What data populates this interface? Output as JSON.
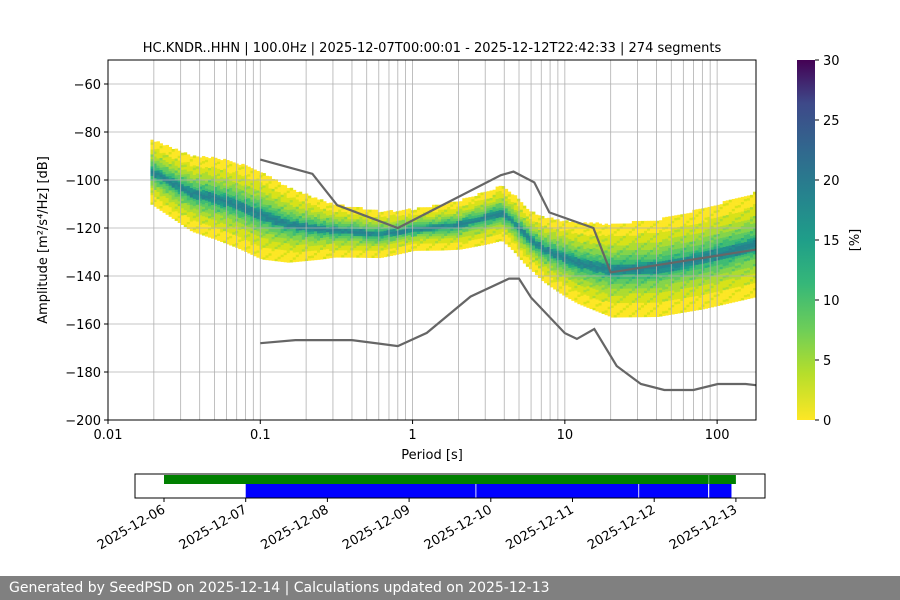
{
  "chart_data": [
    {
      "type": "heatmap",
      "title": "HC.KNDR..HHN | 100.0Hz | 2025-12-07T00:00:01 - 2025-12-12T22:42:33 | 274 segments",
      "xlabel": "Period [s]",
      "ylabel": "Amplitude [m²/s⁴/Hz] [dB]",
      "xscale": "log",
      "xlim": [
        0.01,
        180
      ],
      "ylim": [
        -200,
        -50
      ],
      "xticks": [
        "0.01",
        "0.1",
        "1",
        "10",
        "100"
      ],
      "yticks": [
        "−60",
        "−80",
        "−100",
        "−120",
        "−140",
        "−160",
        "−180",
        "−200"
      ],
      "grid": true,
      "colorbar": {
        "label": "[%]",
        "range": [
          0,
          30
        ],
        "ticks": [
          "0",
          "5",
          "10",
          "15",
          "20",
          "25",
          "30"
        ],
        "colormap": "viridis"
      },
      "density_mode": [
        [
          0.019,
          -97
        ],
        [
          0.025,
          -101
        ],
        [
          0.035,
          -106
        ],
        [
          0.05,
          -108
        ],
        [
          0.07,
          -111
        ],
        [
          0.1,
          -115
        ],
        [
          0.15,
          -119
        ],
        [
          0.25,
          -121
        ],
        [
          0.4,
          -122
        ],
        [
          0.6,
          -123
        ],
        [
          0.8,
          -122
        ],
        [
          1.0,
          -121
        ],
        [
          1.5,
          -120
        ],
        [
          2.0,
          -119
        ],
        [
          3.0,
          -116
        ],
        [
          3.8,
          -114
        ],
        [
          4.5,
          -118
        ],
        [
          5.5,
          -124
        ],
        [
          7.0,
          -129
        ],
        [
          9.0,
          -132
        ],
        [
          12,
          -135
        ],
        [
          20,
          -138
        ],
        [
          40,
          -137
        ],
        [
          80,
          -133
        ],
        [
          180,
          -127
        ]
      ],
      "density_band_width_db": [
        [
          0.019,
          22
        ],
        [
          0.05,
          28
        ],
        [
          0.1,
          30
        ],
        [
          0.3,
          18
        ],
        [
          1.0,
          14
        ],
        [
          3.0,
          18
        ],
        [
          6.0,
          20
        ],
        [
          10,
          26
        ],
        [
          20,
          32
        ],
        [
          60,
          34
        ],
        [
          180,
          36
        ]
      ],
      "nhnm": [
        [
          0.1,
          -91.5
        ],
        [
          0.22,
          -97.4
        ],
        [
          0.32,
          -110.5
        ],
        [
          0.8,
          -120
        ],
        [
          3.8,
          -98
        ],
        [
          4.6,
          -96.5
        ],
        [
          6.3,
          -101
        ],
        [
          7.9,
          -113.5
        ],
        [
          15.4,
          -120
        ],
        [
          20,
          -138.5
        ],
        [
          180,
          -129
        ]
      ],
      "nlnm": [
        [
          0.1,
          -168
        ],
        [
          0.17,
          -166.7
        ],
        [
          0.4,
          -166.7
        ],
        [
          0.8,
          -169.2
        ],
        [
          1.24,
          -163.7
        ],
        [
          2.4,
          -148.6
        ],
        [
          4.3,
          -141.1
        ],
        [
          5.0,
          -141.1
        ],
        [
          6.0,
          -149
        ],
        [
          10,
          -163.8
        ],
        [
          12,
          -166.2
        ],
        [
          15.6,
          -162.1
        ],
        [
          21.9,
          -177.5
        ],
        [
          31.6,
          -185
        ],
        [
          45,
          -187.5
        ],
        [
          70,
          -187.5
        ],
        [
          101,
          -185
        ],
        [
          154,
          -185
        ],
        [
          180,
          -185.5
        ]
      ],
      "line_color": "#666666"
    },
    {
      "type": "timeline",
      "xticks": [
        "2025-12-06",
        "2025-12-07",
        "2025-12-08",
        "2025-12-09",
        "2025-12-10",
        "2025-12-11",
        "2025-12-12",
        "2025-12-13"
      ],
      "available": [
        {
          "start": "2025-12-06T00:00",
          "end": "2025-12-12T16:00"
        },
        {
          "start": "2025-12-12T16:08",
          "end": "2025-12-13T00:00"
        }
      ],
      "processed": [
        {
          "start": "2025-12-07T00:00",
          "end": "2025-12-09T19:30"
        },
        {
          "start": "2025-12-09T19:45",
          "end": "2025-12-11T19:20"
        },
        {
          "start": "2025-12-11T19:35",
          "end": "2025-12-12T15:50"
        },
        {
          "start": "2025-12-12T16:10",
          "end": "2025-12-12T22:42"
        }
      ],
      "available_color": "#008000",
      "processed_color": "#0000ff"
    }
  ],
  "footer": "Generated by SeedPSD on 2025-12-14 | Calculations updated on 2025-12-13"
}
